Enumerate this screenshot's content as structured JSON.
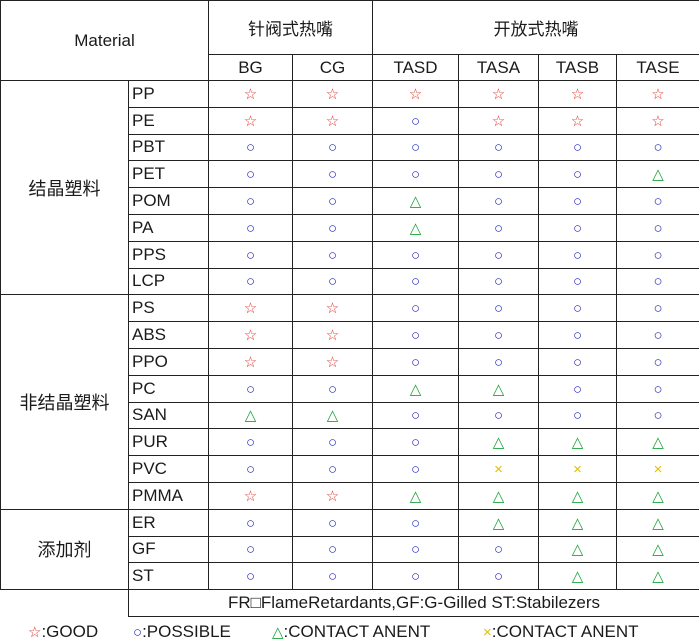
{
  "header": {
    "material": "Material",
    "group_needle": "针阀式热嘴",
    "group_open": "开放式热嘴",
    "columns": [
      "BG",
      "CG",
      "TASD",
      "TASA",
      "TASB",
      "TASE"
    ]
  },
  "symbols": {
    "GOOD": {
      "char": "☆",
      "color": "#e8322b"
    },
    "POSSIBLE": {
      "char": "○",
      "color": "#2b2fb8"
    },
    "CONTACT": {
      "char": "△",
      "color": "#1aa33a"
    },
    "X": {
      "char": "×",
      "color": "#e0c000"
    }
  },
  "groups": [
    {
      "label": "结晶塑料",
      "rows": [
        {
          "material": "PP",
          "values": [
            "GOOD",
            "GOOD",
            "GOOD",
            "GOOD",
            "GOOD",
            "GOOD"
          ]
        },
        {
          "material": "PE",
          "values": [
            "GOOD",
            "GOOD",
            "POSSIBLE",
            "GOOD",
            "GOOD",
            "GOOD"
          ]
        },
        {
          "material": "PBT",
          "values": [
            "POSSIBLE",
            "POSSIBLE",
            "POSSIBLE",
            "POSSIBLE",
            "POSSIBLE",
            "POSSIBLE"
          ]
        },
        {
          "material": "PET",
          "values": [
            "POSSIBLE",
            "POSSIBLE",
            "POSSIBLE",
            "POSSIBLE",
            "POSSIBLE",
            "CONTACT"
          ]
        },
        {
          "material": "POM",
          "values": [
            "POSSIBLE",
            "POSSIBLE",
            "CONTACT",
            "POSSIBLE",
            "POSSIBLE",
            "POSSIBLE"
          ]
        },
        {
          "material": "PA",
          "values": [
            "POSSIBLE",
            "POSSIBLE",
            "CONTACT",
            "POSSIBLE",
            "POSSIBLE",
            "POSSIBLE"
          ]
        },
        {
          "material": "PPS",
          "values": [
            "POSSIBLE",
            "POSSIBLE",
            "POSSIBLE",
            "POSSIBLE",
            "POSSIBLE",
            "POSSIBLE"
          ]
        },
        {
          "material": "LCP",
          "values": [
            "POSSIBLE",
            "POSSIBLE",
            "POSSIBLE",
            "POSSIBLE",
            "POSSIBLE",
            "POSSIBLE"
          ]
        }
      ]
    },
    {
      "label": "非结晶塑料",
      "rows": [
        {
          "material": "PS",
          "values": [
            "GOOD",
            "GOOD",
            "POSSIBLE",
            "POSSIBLE",
            "POSSIBLE",
            "POSSIBLE"
          ]
        },
        {
          "material": "ABS",
          "values": [
            "GOOD",
            "GOOD",
            "POSSIBLE",
            "POSSIBLE",
            "POSSIBLE",
            "POSSIBLE"
          ]
        },
        {
          "material": "PPO",
          "values": [
            "GOOD",
            "GOOD",
            "POSSIBLE",
            "POSSIBLE",
            "POSSIBLE",
            "POSSIBLE"
          ]
        },
        {
          "material": "PC",
          "values": [
            "POSSIBLE",
            "POSSIBLE",
            "CONTACT",
            "CONTACT",
            "POSSIBLE",
            "POSSIBLE"
          ]
        },
        {
          "material": "SAN",
          "values": [
            "CONTACT",
            "CONTACT",
            "POSSIBLE",
            "POSSIBLE",
            "POSSIBLE",
            "POSSIBLE"
          ]
        },
        {
          "material": "PUR",
          "values": [
            "POSSIBLE",
            "POSSIBLE",
            "POSSIBLE",
            "CONTACT",
            "CONTACT",
            "CONTACT"
          ]
        },
        {
          "material": "PVC",
          "values": [
            "POSSIBLE",
            "POSSIBLE",
            "POSSIBLE",
            "X",
            "X",
            "X"
          ]
        },
        {
          "material": "PMMA",
          "values": [
            "GOOD",
            "GOOD",
            "CONTACT",
            "CONTACT",
            "CONTACT",
            "CONTACT"
          ]
        }
      ]
    },
    {
      "label": "添加剂",
      "rows": [
        {
          "material": "ER",
          "values": [
            "POSSIBLE",
            "POSSIBLE",
            "POSSIBLE",
            "CONTACT",
            "CONTACT",
            "CONTACT"
          ]
        },
        {
          "material": "GF",
          "values": [
            "POSSIBLE",
            "POSSIBLE",
            "POSSIBLE",
            "POSSIBLE",
            "CONTACT",
            "CONTACT"
          ]
        },
        {
          "material": "ST",
          "values": [
            "POSSIBLE",
            "POSSIBLE",
            "POSSIBLE",
            "POSSIBLE",
            "CONTACT",
            "CONTACT"
          ]
        }
      ]
    }
  ],
  "note": "FR□FlameRetardants,GF:G-Gilled ST:Stabilezers",
  "legend": {
    "good": ":GOOD",
    "possible": ":POSSIBLE",
    "contact": ":CONTACT ANENT",
    "x": ":CONTACT ANENT"
  }
}
